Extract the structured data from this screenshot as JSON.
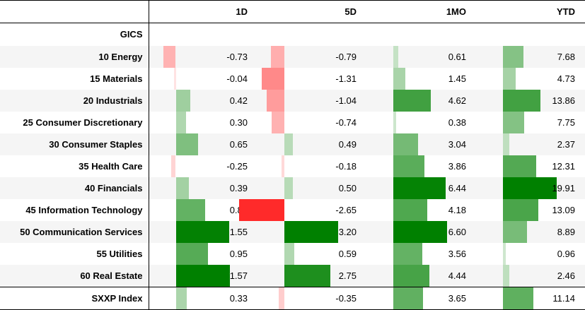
{
  "columns": [
    "1D",
    "5D",
    "1MO",
    "YTD"
  ],
  "group_label": "GICS",
  "colors": {
    "positive": "#008000",
    "negative": "#ff2a2a"
  },
  "scale_max": [
    1.57,
    3.2,
    6.6,
    19.91
  ],
  "rows": [
    {
      "label": "10 Energy",
      "values": [
        -0.73,
        -0.79,
        0.61,
        7.68
      ],
      "display": [
        "-0.73",
        "-0.79",
        "0.61",
        "7.68"
      ]
    },
    {
      "label": "15 Materials",
      "values": [
        -0.04,
        -1.31,
        1.45,
        4.73
      ],
      "display": [
        "-0.04",
        "-1.31",
        "1.45",
        "4.73"
      ]
    },
    {
      "label": "20 Industrials",
      "values": [
        0.42,
        -1.04,
        4.62,
        13.86
      ],
      "display": [
        "0.42",
        "-1.04",
        "4.62",
        "13.86"
      ]
    },
    {
      "label": "25 Consumer Discretionary",
      "values": [
        0.3,
        -0.74,
        0.38,
        7.75
      ],
      "display": [
        "0.30",
        "-0.74",
        "0.38",
        "7.75"
      ]
    },
    {
      "label": "30 Consumer Staples",
      "values": [
        0.65,
        0.49,
        3.04,
        2.37
      ],
      "display": [
        "0.65",
        "0.49",
        "3.04",
        "2.37"
      ]
    },
    {
      "label": "35 Health Care",
      "values": [
        -0.25,
        -0.18,
        3.86,
        12.31
      ],
      "display": [
        "-0.25",
        "-0.18",
        "3.86",
        "12.31"
      ]
    },
    {
      "label": "40 Financials",
      "values": [
        0.39,
        0.5,
        6.44,
        19.91
      ],
      "display": [
        "0.39",
        "0.50",
        "6.44",
        "19.91"
      ]
    },
    {
      "label": "45 Information Technology",
      "values": [
        0.85,
        -2.65,
        4.18,
        13.09
      ],
      "display": [
        "0.85",
        "-2.65",
        "4.18",
        "13.09"
      ]
    },
    {
      "label": "50 Communication Services",
      "values": [
        1.55,
        3.2,
        6.6,
        8.89
      ],
      "display": [
        "1.55",
        "3.20",
        "6.60",
        "8.89"
      ]
    },
    {
      "label": "55 Utilities",
      "values": [
        0.95,
        0.59,
        3.56,
        0.96
      ],
      "display": [
        "0.95",
        "0.59",
        "3.56",
        "0.96"
      ]
    },
    {
      "label": "60 Real Estate",
      "values": [
        1.57,
        2.75,
        4.44,
        2.46
      ],
      "display": [
        "1.57",
        "2.75",
        "4.44",
        "2.46"
      ]
    }
  ],
  "index_row": {
    "label": "SXXP Index",
    "values": [
      0.33,
      -0.35,
      3.65,
      11.14
    ],
    "display": [
      "0.33",
      "-0.35",
      "3.65",
      "11.14"
    ]
  }
}
